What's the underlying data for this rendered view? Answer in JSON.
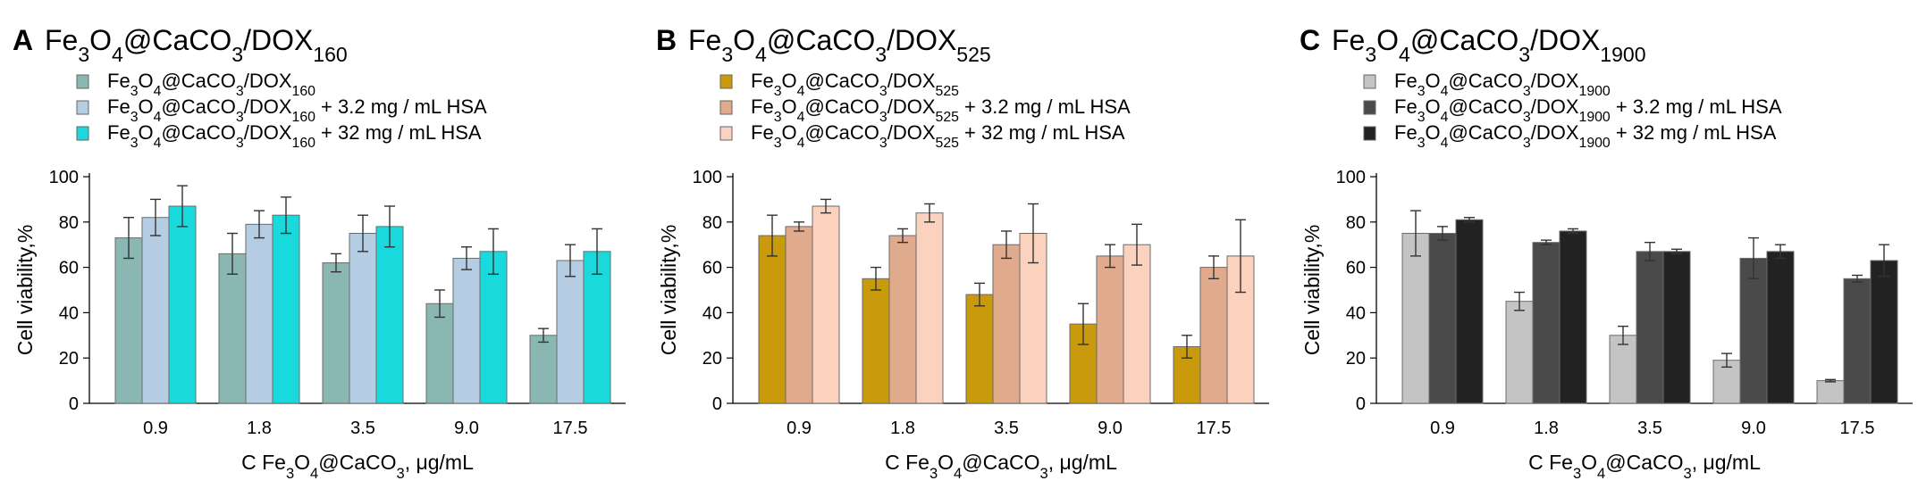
{
  "chart_data": [
    {
      "panel_letter": "A",
      "title": "Fe3O4@CaCO3/DOX160",
      "type": "bar",
      "xlabel": "C Fe3O4@CaCO3, μg/mL",
      "ylabel": "Cell viability,%",
      "ylim": [
        0,
        100
      ],
      "yticks": [
        0,
        20,
        40,
        60,
        80,
        100
      ],
      "categories": [
        "0.9",
        "1.8",
        "3.5",
        "9.0",
        "17.5"
      ],
      "legend_position": "top-left",
      "series": [
        {
          "name": "Fe3O4@CaCO3/DOX160",
          "color": "#8ab7b1",
          "values": [
            73,
            66,
            62,
            44,
            30
          ],
          "errors": [
            9,
            9,
            4,
            6,
            3
          ]
        },
        {
          "name": "Fe3O4@CaCO3/DOX160 + 3.2 mg / mL HSA",
          "color": "#b5cde3",
          "values": [
            82,
            79,
            75,
            64,
            63
          ],
          "errors": [
            8,
            6,
            8,
            5,
            7
          ]
        },
        {
          "name": "Fe3O4@CaCO3/DOX160 + 32 mg / mL HSA",
          "color": "#19d9dc",
          "values": [
            87,
            83,
            78,
            67,
            67
          ],
          "errors": [
            9,
            8,
            9,
            10,
            10
          ]
        }
      ]
    },
    {
      "panel_letter": "B",
      "title": "Fe3O4@CaCO3/DOX525",
      "type": "bar",
      "xlabel": "C Fe3O4@CaCO3, μg/mL",
      "ylabel": "Cell viability,%",
      "ylim": [
        0,
        100
      ],
      "yticks": [
        0,
        20,
        40,
        60,
        80,
        100
      ],
      "categories": [
        "0.9",
        "1.8",
        "3.5",
        "9.0",
        "17.5"
      ],
      "legend_position": "top-left",
      "series": [
        {
          "name": "Fe3O4@CaCO3/DOX525",
          "color": "#c99a0c",
          "values": [
            74,
            55,
            48,
            35,
            25
          ],
          "errors": [
            9,
            5,
            5,
            9,
            5
          ]
        },
        {
          "name": "Fe3O4@CaCO3/DOX525 + 3.2 mg / mL HSA",
          "color": "#e0ab8c",
          "values": [
            78,
            74,
            70,
            65,
            60
          ],
          "errors": [
            2,
            3,
            6,
            5,
            5
          ]
        },
        {
          "name": "Fe3O4@CaCO3/DOX525 + 32 mg / mL HSA",
          "color": "#fbd2bd",
          "values": [
            87,
            84,
            75,
            70,
            65
          ],
          "errors": [
            3,
            4,
            13,
            9,
            16
          ]
        }
      ]
    },
    {
      "panel_letter": "C",
      "title": "Fe3O4@CaCO3/DOX1900",
      "type": "bar",
      "xlabel": "C Fe3O4@CaCO3, μg/mL",
      "ylabel": "Cell viability,%",
      "ylim": [
        0,
        100
      ],
      "yticks": [
        0,
        20,
        40,
        60,
        80,
        100
      ],
      "categories": [
        "0.9",
        "1.8",
        "3.5",
        "9.0",
        "17.5"
      ],
      "legend_position": "top-left",
      "series": [
        {
          "name": "Fe3O4@CaCO3/DOX1900",
          "color": "#c4c4c4",
          "values": [
            75,
            45,
            30,
            19,
            10
          ],
          "errors": [
            10,
            4,
            4,
            3,
            0.5
          ]
        },
        {
          "name": "Fe3O4@CaCO3/DOX1900 + 3.2 mg / mL HSA",
          "color": "#4a4a4a",
          "values": [
            75,
            71,
            67,
            64,
            55
          ],
          "errors": [
            3,
            1,
            4,
            9,
            1.5
          ]
        },
        {
          "name": "Fe3O4@CaCO3/DOX1900 + 32 mg / mL HSA",
          "color": "#222222",
          "values": [
            81,
            76,
            67,
            67,
            63
          ],
          "errors": [
            1,
            1,
            1,
            3,
            7
          ]
        }
      ]
    }
  ]
}
